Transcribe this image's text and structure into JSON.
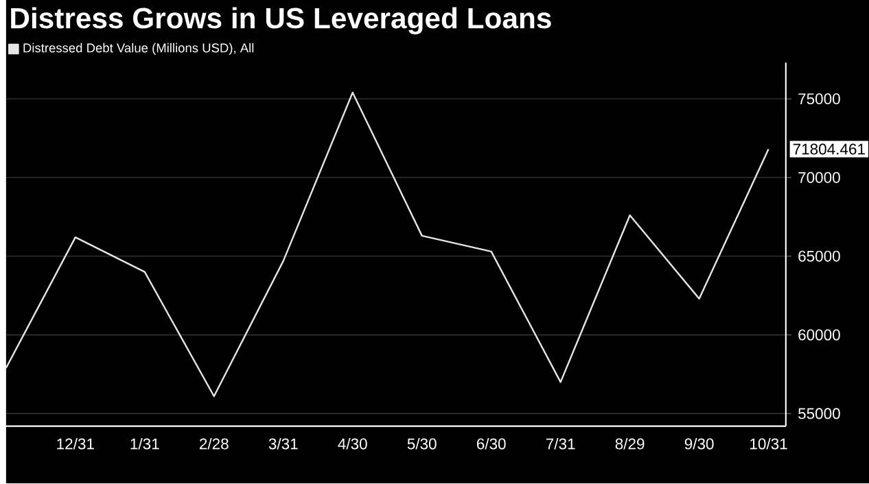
{
  "chart_data": {
    "type": "line",
    "title": "Distress Grows in US Leveraged Loans",
    "categories": [
      null,
      "12/31",
      "1/31",
      "2/28",
      "3/31",
      "4/30",
      "5/30",
      "6/30",
      "7/31",
      "8/29",
      "9/30",
      "10/31"
    ],
    "series": [
      {
        "name": "Distressed Debt Value (Millions USD), All",
        "color": "#e6e6e6",
        "values": [
          57900,
          66200,
          64000,
          56100,
          64700,
          75400,
          66300,
          65300,
          57000,
          67600,
          62300,
          71804.461
        ],
        "value_labels": [
          null,
          null,
          null,
          null,
          null,
          null,
          null,
          null,
          null,
          null,
          null,
          "71804.461"
        ]
      }
    ],
    "ylim": [
      54200,
      77300
    ],
    "yticks": [
      55000,
      60000,
      65000,
      70000,
      75000
    ],
    "grid": "y",
    "legend": "top left",
    "marker": "none",
    "line_style": "solid"
  }
}
